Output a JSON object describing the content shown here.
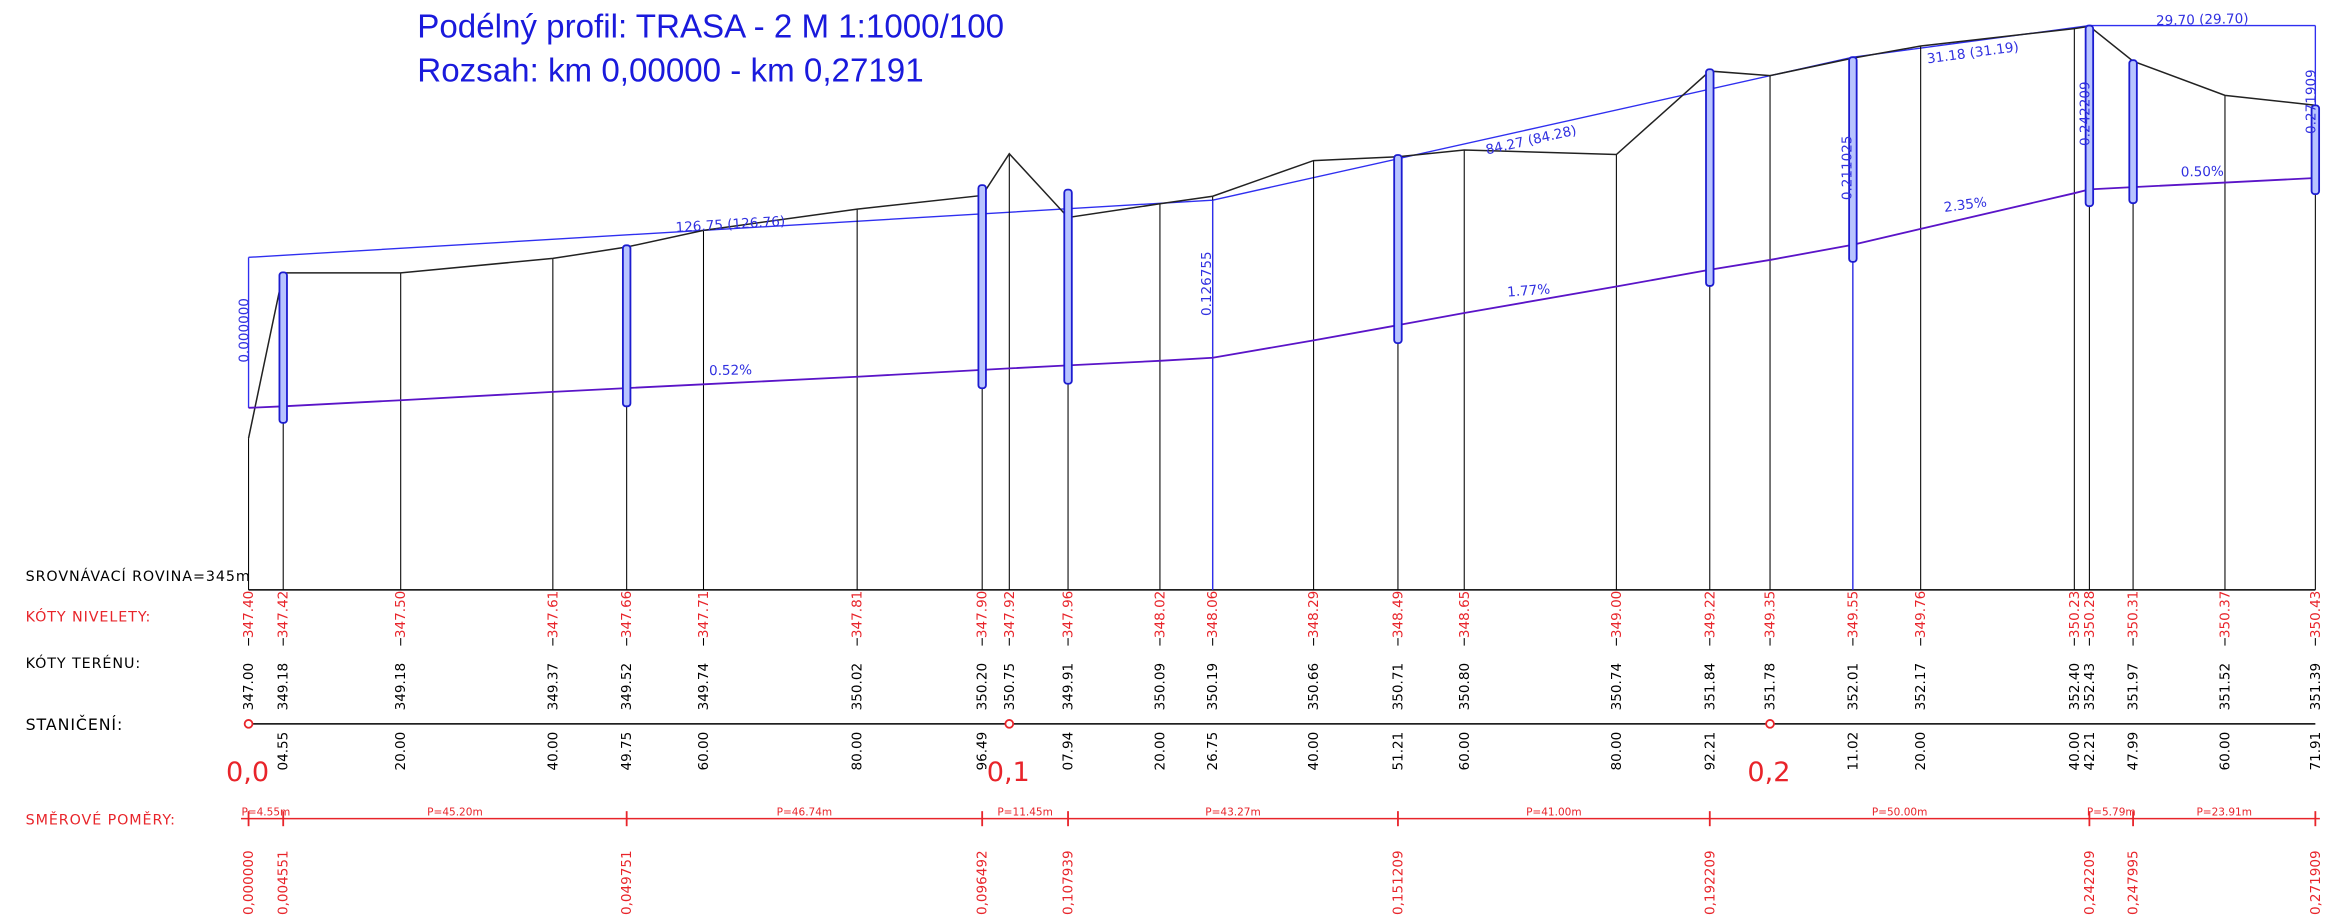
{
  "header": {
    "title": "Podélný profil: TRASA - 2  M 1:1000/100",
    "range": "Rozsah: km 0,00000 - km 0,27191"
  },
  "rows": {
    "datum": "SROVNÁVACÍ ROVINA=345m",
    "niveleta": "KÓTY NIVELETY:",
    "terrain": "KÓTY TERÉNU:",
    "stationing": "STANIČENÍ:",
    "alignment": "SMĚROVÉ POMĚRY:"
  },
  "stations": [
    {
      "terrain": "347.00",
      "niveleta": "347.40",
      "km": "0,0"
    },
    {
      "terrain": "349.18",
      "niveleta": "347.42",
      "station": "04.55"
    },
    {
      "terrain": "349.18",
      "niveleta": "347.50",
      "station": "20.00"
    },
    {
      "terrain": "349.37",
      "niveleta": "347.61",
      "station": "40.00"
    },
    {
      "terrain": "349.52",
      "niveleta": "347.66",
      "station": "49.75"
    },
    {
      "terrain": "349.74",
      "niveleta": "347.71",
      "station": "60.00"
    },
    {
      "terrain": "350.02",
      "niveleta": "347.81",
      "station": "80.00"
    },
    {
      "terrain": "350.20",
      "niveleta": "347.90",
      "station": "96.49"
    },
    {
      "terrain": "350.75",
      "niveleta": "347.92",
      "km": "0,1"
    },
    {
      "terrain": "349.91",
      "niveleta": "347.96",
      "station": "07.94"
    },
    {
      "terrain": "350.09",
      "niveleta": "348.02",
      "station": "20.00"
    },
    {
      "terrain": "350.19",
      "niveleta": "348.06",
      "station": "26.75"
    },
    {
      "terrain": "350.66",
      "niveleta": "348.29",
      "station": "40.00"
    },
    {
      "terrain": "350.71",
      "niveleta": "348.49",
      "station": "51.21"
    },
    {
      "terrain": "350.80",
      "niveleta": "348.65",
      "station": "60.00"
    },
    {
      "terrain": "350.74",
      "niveleta": "349.00",
      "station": "80.00"
    },
    {
      "terrain": "351.84",
      "niveleta": "349.22",
      "station": "92.21"
    },
    {
      "terrain": "351.78",
      "niveleta": "349.35",
      "km": "0,2"
    },
    {
      "terrain": "352.01",
      "niveleta": "349.55",
      "station": "11.02"
    },
    {
      "terrain": "352.17",
      "niveleta": "349.76",
      "station": "20.00"
    },
    {
      "terrain": "352.40",
      "niveleta": "350.23",
      "station": "40.00"
    },
    {
      "terrain": "352.43",
      "niveleta": "350.28",
      "station": "42.21"
    },
    {
      "terrain": "351.97",
      "niveleta": "350.31",
      "station": "47.99"
    },
    {
      "terrain": "351.52",
      "niveleta": "350.37",
      "station": "60.00"
    },
    {
      "terrain": "351.39",
      "niveleta": "350.43",
      "station": "71.91"
    }
  ],
  "segments": [
    "P=4.55m",
    "P=45.20m",
    "P=46.74m",
    "P=11.45m",
    "P=43.27m",
    "P=41.00m",
    "P=50.00m",
    "P=5.79m",
    "P=23.91m"
  ],
  "chainages": [
    "0,000000",
    "0,004551",
    "0,049751",
    "0,096492",
    "0,107939",
    "0,151209",
    "0,192209",
    "0,242209",
    "0,247995",
    "0,271909"
  ],
  "grades": [
    "0.52%",
    "1.77%",
    "2.35%",
    "0.50%"
  ],
  "distances": [
    "126.75 (126.76)",
    "84.27 (84.28)",
    "31.18 (31.19)",
    "29.70 (29.70)"
  ],
  "vertex_chainages": [
    "0.000000",
    "0.126755",
    "0.211025",
    "0.242209",
    "0.271909"
  ]
}
